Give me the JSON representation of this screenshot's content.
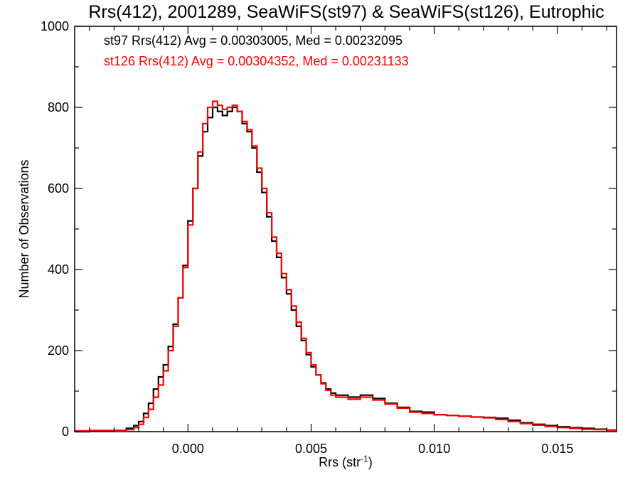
{
  "chart_data": {
    "type": "line",
    "title": "Rrs(412), 2001289, SeaWiFS(st97) & SeaWiFS(st126), Eutrophic",
    "xlabel_main": "Rrs (str",
    "xlabel_sup": "-1",
    "xlabel_close": ")",
    "ylabel": "Number of Observations",
    "xlim": [
      -0.0046,
      0.0174
    ],
    "ylim": [
      0,
      1000
    ],
    "x_ticks": [
      0.0,
      0.005,
      0.01,
      0.015
    ],
    "x_tick_labels": [
      "0.000",
      "0.005",
      "0.010",
      "0.015"
    ],
    "y_ticks": [
      0,
      200,
      400,
      600,
      800,
      1000
    ],
    "y_tick_labels": [
      "0",
      "200",
      "400",
      "600",
      "800",
      "1000"
    ],
    "grid": false,
    "annotations": [
      {
        "text": "st97 Rrs(412) Avg = 0.00303005, Med = 0.00232095",
        "color": "#000000"
      },
      {
        "text": "st126 Rrs(412) Avg = 0.00304352, Med = 0.00231133",
        "color": "#ff0000"
      }
    ],
    "series": [
      {
        "color": "#000000",
        "x": [
          -0.0046,
          -0.004,
          -0.003,
          -0.0025,
          -0.0022,
          -0.002,
          -0.0018,
          -0.0016,
          -0.0014,
          -0.0012,
          -0.001,
          -0.0008,
          -0.0006,
          -0.0004,
          -0.0002,
          0.0,
          0.0002,
          0.0004,
          0.0006,
          0.0008,
          0.001,
          0.0012,
          0.0014,
          0.0016,
          0.0018,
          0.002,
          0.0022,
          0.0024,
          0.0026,
          0.0028,
          0.003,
          0.0032,
          0.0034,
          0.0036,
          0.0038,
          0.004,
          0.0042,
          0.0044,
          0.0046,
          0.0048,
          0.005,
          0.0052,
          0.0054,
          0.0056,
          0.0058,
          0.006,
          0.0065,
          0.007,
          0.0075,
          0.008,
          0.0085,
          0.009,
          0.0095,
          0.01,
          0.0105,
          0.011,
          0.0115,
          0.012,
          0.0125,
          0.013,
          0.0135,
          0.014,
          0.0145,
          0.015,
          0.0155,
          0.016,
          0.0165,
          0.017,
          0.0174
        ],
        "y": [
          0,
          2,
          3,
          8,
          15,
          25,
          45,
          70,
          105,
          135,
          165,
          210,
          265,
          330,
          410,
          520,
          600,
          680,
          740,
          775,
          800,
          790,
          780,
          790,
          800,
          790,
          760,
          740,
          700,
          640,
          590,
          530,
          470,
          430,
          380,
          340,
          300,
          260,
          225,
          190,
          160,
          140,
          120,
          105,
          95,
          90,
          85,
          90,
          82,
          70,
          60,
          50,
          48,
          42,
          40,
          38,
          36,
          35,
          33,
          28,
          22,
          18,
          15,
          12,
          10,
          8,
          6,
          4,
          4
        ]
      },
      {
        "color": "#ff0000",
        "x": [
          -0.0046,
          -0.004,
          -0.003,
          -0.0025,
          -0.0022,
          -0.002,
          -0.0018,
          -0.0016,
          -0.0014,
          -0.0012,
          -0.001,
          -0.0008,
          -0.0006,
          -0.0004,
          -0.0002,
          0.0,
          0.0002,
          0.0004,
          0.0006,
          0.0008,
          0.001,
          0.0012,
          0.0014,
          0.0016,
          0.0018,
          0.002,
          0.0022,
          0.0024,
          0.0026,
          0.0028,
          0.003,
          0.0032,
          0.0034,
          0.0036,
          0.0038,
          0.004,
          0.0042,
          0.0044,
          0.0046,
          0.0048,
          0.005,
          0.0052,
          0.0054,
          0.0056,
          0.0058,
          0.006,
          0.0065,
          0.007,
          0.0075,
          0.008,
          0.0085,
          0.009,
          0.0095,
          0.01,
          0.0105,
          0.011,
          0.0115,
          0.012,
          0.0125,
          0.013,
          0.0135,
          0.014,
          0.0145,
          0.015,
          0.0155,
          0.016,
          0.0165,
          0.017,
          0.0174
        ],
        "y": [
          2,
          3,
          2,
          5,
          10,
          18,
          35,
          55,
          85,
          115,
          150,
          200,
          260,
          330,
          405,
          510,
          600,
          690,
          760,
          800,
          815,
          805,
          795,
          800,
          805,
          790,
          765,
          745,
          705,
          650,
          600,
          540,
          480,
          440,
          390,
          350,
          310,
          270,
          230,
          195,
          165,
          140,
          118,
          102,
          90,
          85,
          80,
          85,
          78,
          68,
          58,
          48,
          45,
          42,
          40,
          38,
          36,
          34,
          30,
          25,
          20,
          16,
          13,
          10,
          8,
          6,
          5,
          4,
          3
        ]
      }
    ]
  }
}
